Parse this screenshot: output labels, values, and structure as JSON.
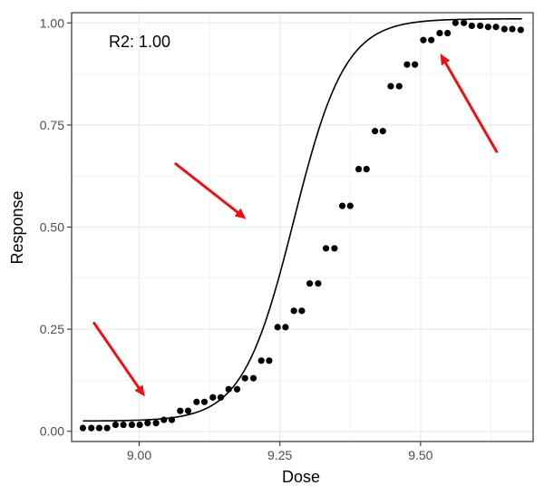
{
  "chart_data": {
    "type": "scatter",
    "xlabel": "Dose",
    "ylabel": "Response",
    "annotation": "R2: 1.00",
    "xlim": [
      8.88,
      9.7
    ],
    "ylim": [
      -0.025,
      1.025
    ],
    "x_ticks": [
      9.0,
      9.25,
      9.5
    ],
    "x_tick_labels": [
      "9.00",
      "9.25",
      "9.50"
    ],
    "y_ticks": [
      0,
      0.25,
      0.5,
      0.75,
      1.0
    ],
    "y_tick_labels": [
      "0.00",
      "0.25",
      "0.50",
      "0.75",
      "1.00"
    ],
    "grid": true,
    "series": [
      {
        "kind": "points",
        "color": "#000000",
        "x": [
          8.9,
          8.915,
          8.929,
          8.943,
          8.958,
          8.972,
          8.987,
          9.001,
          9.015,
          9.03,
          9.044,
          9.058,
          9.073,
          9.087,
          9.102,
          9.116,
          9.131,
          9.145,
          9.159,
          9.174,
          9.188,
          9.203,
          9.217,
          9.231,
          9.246,
          9.26,
          9.275,
          9.289,
          9.303,
          9.318,
          9.332,
          9.347,
          9.361,
          9.375,
          9.39,
          9.404,
          9.419,
          9.433,
          9.447,
          9.462,
          9.476,
          9.49,
          9.505,
          9.519,
          9.534,
          9.548,
          9.562,
          9.577,
          9.591,
          9.606,
          9.62,
          9.634,
          9.649,
          9.663,
          9.678
        ],
        "y": [
          0.008,
          0.008,
          0.008,
          0.008,
          0.016,
          0.016,
          0.016,
          0.016,
          0.02,
          0.02,
          0.028,
          0.028,
          0.05,
          0.05,
          0.072,
          0.072,
          0.083,
          0.083,
          0.103,
          0.103,
          0.13,
          0.13,
          0.173,
          0.173,
          0.255,
          0.255,
          0.295,
          0.295,
          0.362,
          0.362,
          0.448,
          0.448,
          0.552,
          0.552,
          0.642,
          0.642,
          0.735,
          0.735,
          0.845,
          0.845,
          0.898,
          0.898,
          0.958,
          0.958,
          0.975,
          0.975,
          1.0,
          1.0,
          0.993,
          0.993,
          0.99,
          0.99,
          0.985,
          0.985,
          0.983
        ]
      }
    ],
    "fit_curve": {
      "kind": "line",
      "color": "#000000",
      "model": "logistic",
      "bottom": 0.025,
      "top": 1.01,
      "midpoint": 9.275,
      "slope": 22.0,
      "x_range": [
        8.9,
        9.68
      ]
    },
    "arrows": [
      {
        "from": [
          8.92,
          0.265
        ],
        "to": [
          9.01,
          0.085
        ],
        "color": "#ee1111"
      },
      {
        "from": [
          9.065,
          0.655
        ],
        "to": [
          9.19,
          0.52
        ],
        "color": "#ee1111"
      },
      {
        "from": [
          9.635,
          0.685
        ],
        "to": [
          9.535,
          0.925
        ],
        "color": "#ee1111"
      }
    ]
  }
}
